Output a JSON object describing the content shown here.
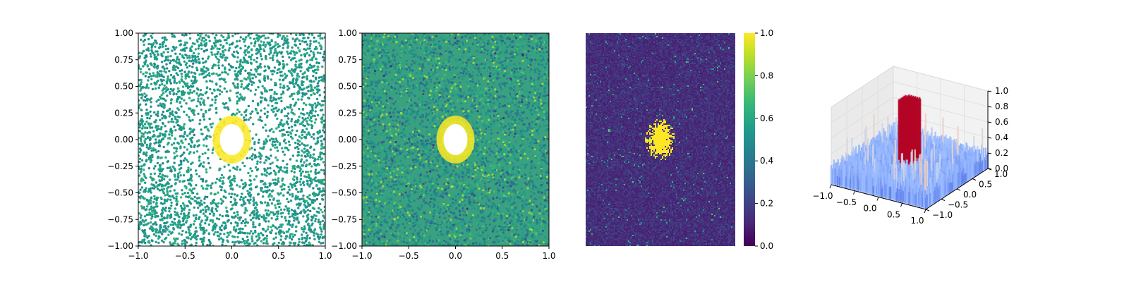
{
  "chart_data": [
    {
      "type": "scatter",
      "title": "",
      "xlabel": "",
      "ylabel": "",
      "xlim": [
        -1.0,
        1.0
      ],
      "ylim": [
        -1.0,
        1.0
      ],
      "xticks": [
        "−1.0",
        "−0.5",
        "0.0",
        "0.5",
        "1.0"
      ],
      "xtick_values": [
        -1.0,
        -0.5,
        0.0,
        0.5,
        1.0
      ],
      "yticks": [
        "1.00",
        "0.75",
        "0.50",
        "0.25",
        "0.00",
        "−0.25",
        "−0.50",
        "−0.75",
        "−1.00"
      ],
      "ytick_values": [
        1.0,
        0.75,
        0.5,
        0.25,
        0.0,
        -0.25,
        -0.5,
        -0.75,
        -1.0
      ],
      "grid": false,
      "description_of_data": "random points in [-1,1]^2 colored by a gaussian peak at the origin (sigma ~0.12) plus noise; high values rendered very light/white",
      "peak_center": [
        0.0,
        0.0
      ],
      "peak_sigma": 0.12,
      "background_color": "#21918c",
      "peak_color": "#fde725"
    },
    {
      "type": "scatter",
      "title": "",
      "xlabel": "",
      "ylabel": "",
      "xlim": [
        -1.0,
        1.0
      ],
      "ylim": [
        -1.0,
        1.0
      ],
      "xticks": [
        "−1.0",
        "−0.5",
        "0.0",
        "0.5",
        "1.0"
      ],
      "xtick_values": [
        -1.0,
        -0.5,
        0.0,
        0.5,
        1.0
      ],
      "yticks": [
        "1.00",
        "0.75",
        "0.50",
        "0.25",
        "0.00",
        "−0.25",
        "−0.50",
        "−0.75",
        "−1.00"
      ],
      "ytick_values": [
        1.0,
        0.75,
        0.5,
        0.25,
        0.0,
        -0.25,
        -0.5,
        -0.75,
        -1.0
      ],
      "grid": false,
      "peak_center": [
        0.0,
        0.0
      ],
      "peak_sigma": 0.1,
      "background_color": "#3ba07f",
      "peak_color": "#fde725"
    },
    {
      "type": "heatmap",
      "title": "",
      "colormap": "viridis",
      "axes_visible": false,
      "peak_center": [
        0.0,
        0.0
      ],
      "peak_sigma": 0.12,
      "colorbar": {
        "ticks": [
          "0.0",
          "0.2",
          "0.4",
          "0.6",
          "0.8",
          "1.0"
        ],
        "tick_values": [
          0.0,
          0.2,
          0.4,
          0.6,
          0.8,
          1.0
        ],
        "range": [
          0.0,
          1.0
        ]
      }
    },
    {
      "type": "surface3d",
      "title": "",
      "colormap": "coolwarm",
      "xlim": [
        -1.0,
        1.0
      ],
      "ylim": [
        -1.0,
        1.0
      ],
      "zlim": [
        0.0,
        1.0
      ],
      "xticks": [
        "−1.0",
        "−0.5",
        "0.0",
        "0.5",
        "1.0"
      ],
      "xtick_values": [
        -1.0,
        -0.5,
        0.0,
        0.5,
        1.0
      ],
      "yticks": [
        "−1.0",
        "−0.5",
        "0.0",
        "0.5",
        "1.0"
      ],
      "ytick_values": [
        -1.0,
        -0.5,
        0.0,
        0.5,
        1.0
      ],
      "zticks": [
        "0.0",
        "0.2",
        "0.4",
        "0.6",
        "0.8",
        "1.0"
      ],
      "ztick_values": [
        0.0,
        0.2,
        0.4,
        0.6,
        0.8,
        1.0
      ],
      "peak_center": [
        0.0,
        0.0
      ],
      "peak_height": 1.0,
      "noise_level": 0.3
    }
  ]
}
